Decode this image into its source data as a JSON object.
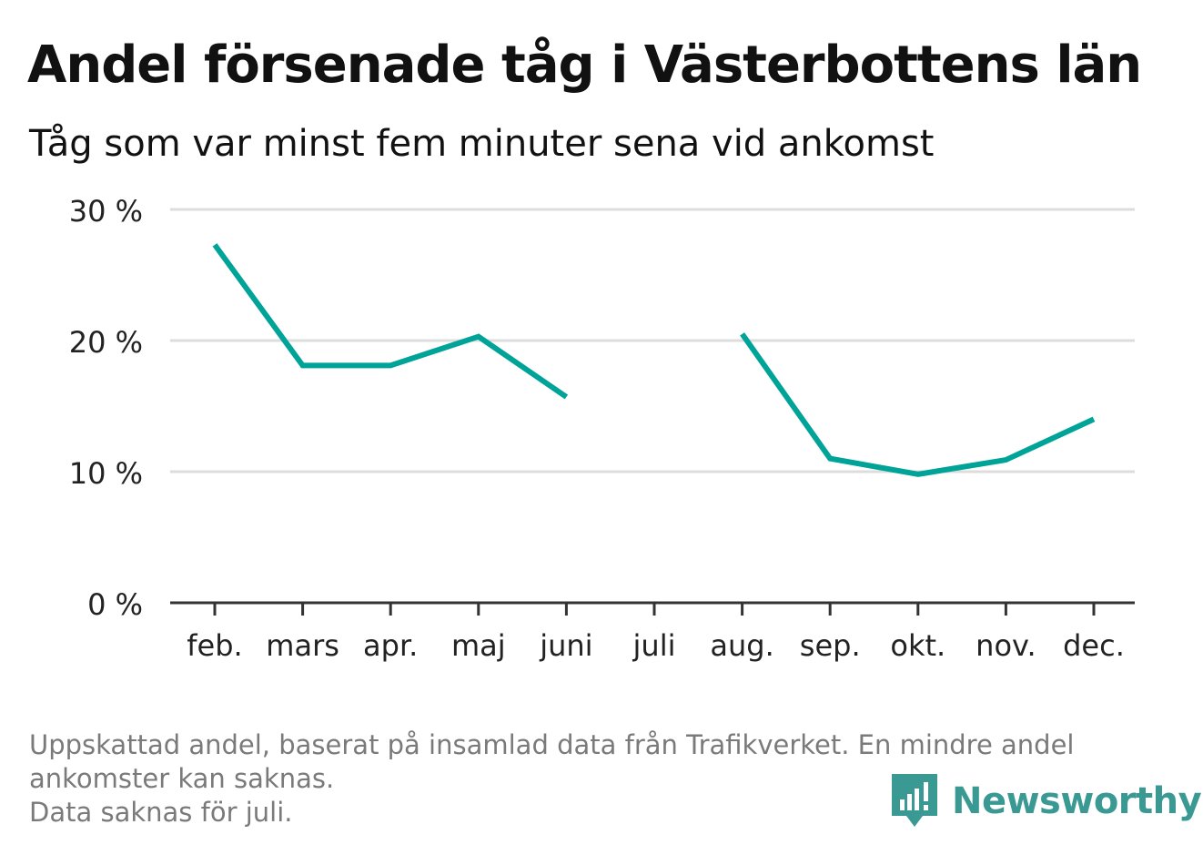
{
  "title": "Andel försenade tåg i Västerbottens län",
  "subtitle": "Tåg som var minst fem minuter sena vid ankomst",
  "footnote": {
    "line1": "Uppskattad andel, baserat på insamlad data från Trafikverket. En mindre andel",
    "line2": "ankomster kan saknas.",
    "line3": "Data saknas för juli."
  },
  "logo": {
    "text": "Newsworthy",
    "icon": "bar-chart-speech-bubble-icon"
  },
  "colors": {
    "line": "#00a398",
    "grid": "#dddddd",
    "axis": "#333333",
    "title": "#111111",
    "note": "#7a7a7a",
    "brand": "#3a9a93"
  },
  "chart_data": {
    "type": "line",
    "title": "Andel försenade tåg i Västerbottens län",
    "subtitle": "Tåg som var minst fem minuter sena vid ankomst",
    "xlabel": "",
    "ylabel": "",
    "categories": [
      "feb.",
      "mars",
      "apr.",
      "maj",
      "juni",
      "juli",
      "aug.",
      "sep.",
      "okt.",
      "nov.",
      "dec."
    ],
    "series": [
      {
        "values": [
          27.3,
          18.1,
          18.1,
          20.3,
          15.7,
          null,
          20.5,
          11.0,
          9.8,
          10.9,
          14.0
        ]
      }
    ],
    "ylim": [
      0,
      30
    ],
    "yticks": [
      0,
      10,
      20,
      30
    ],
    "ytick_labels": [
      "0 %",
      "10 %",
      "20 %",
      "30 %"
    ],
    "grid": true,
    "legend": "none"
  }
}
